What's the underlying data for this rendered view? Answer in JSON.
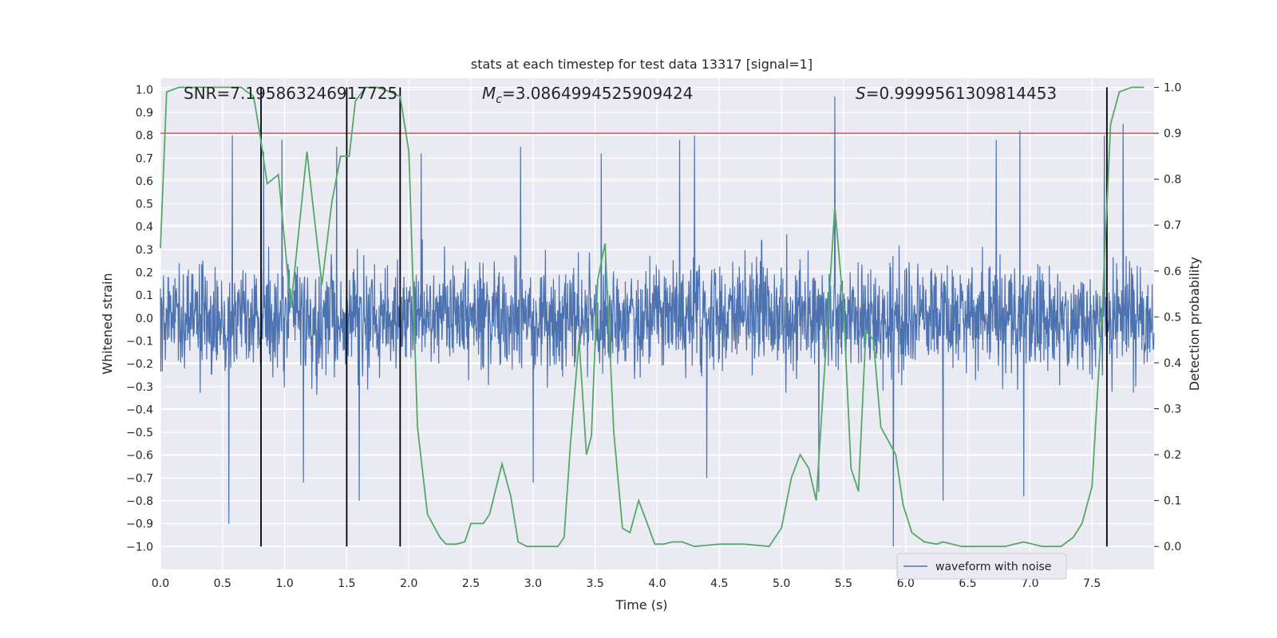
{
  "chart_data": {
    "type": "line",
    "title": "stats at each timestep for test data 13317 [signal=1]",
    "xlabel": "Time (s)",
    "ylabel": "Whitened strain",
    "y2label": "Detection probability",
    "xlim": [
      0.0,
      8.0
    ],
    "ylim": [
      -1.1,
      1.05
    ],
    "y2lim": [
      -0.05,
      1.02
    ],
    "x_ticks": [
      0.0,
      0.5,
      1.0,
      1.5,
      2.0,
      2.5,
      3.0,
      3.5,
      4.0,
      4.5,
      5.0,
      5.5,
      6.0,
      6.5,
      7.0,
      7.5
    ],
    "x_tick_labels": [
      "0.0",
      "0.5",
      "1.0",
      "1.5",
      "2.0",
      "2.5",
      "3.0",
      "3.5",
      "4.0",
      "4.5",
      "5.0",
      "5.5",
      "6.0",
      "6.5",
      "7.0",
      "7.5"
    ],
    "y_ticks": [
      1.0,
      0.9,
      0.8,
      0.7,
      0.6,
      0.5,
      0.4,
      0.3,
      0.2,
      0.1,
      0.0,
      -0.1,
      -0.2,
      -0.3,
      -0.4,
      -0.5,
      -0.6,
      -0.7,
      -0.8,
      -0.9,
      -1.0
    ],
    "y_tick_labels": [
      "1.0",
      "0.9",
      "0.8",
      "0.7",
      "0.6",
      "0.5",
      "0.4",
      "0.3",
      "0.2",
      "0.1",
      "0.0",
      "−0.1",
      "−0.2",
      "−0.3",
      "−0.4",
      "−0.5",
      "−0.6",
      "−0.7",
      "−0.8",
      "−0.9",
      "−1.0"
    ],
    "y2_ticks": [
      1.0,
      0.9,
      0.8,
      0.7,
      0.6,
      0.5,
      0.4,
      0.3,
      0.2,
      0.1,
      0.0
    ],
    "y2_tick_labels": [
      "1.0",
      "0.9",
      "0.8",
      "0.7",
      "0.6",
      "0.5",
      "0.4",
      "0.3",
      "0.2",
      "0.1",
      "0.0"
    ],
    "grid": true,
    "background": "#eaeaf2",
    "threshold": {
      "axis": "y2",
      "value": 0.9,
      "color": "#c44e52"
    },
    "vertical_markers": [
      0.81,
      1.5,
      1.93,
      7.62
    ],
    "annotations": [
      {
        "text": "SNR=7.195863246917725"
      },
      {
        "mc_prefix": "M",
        "mc_sub": "c",
        "mc_value": "=3.0864994525909424"
      },
      {
        "s_prefix": "S",
        "s_value": "=0.9999561309814453"
      }
    ],
    "series": [
      {
        "name": "waveform with noise",
        "color": "#4c72b0",
        "description_amplitude": "noise envelope roughly ±0.4 with spikes up to ~0.97 and down to ~-1.0",
        "spikes_high_x": [
          0.58,
          0.83,
          0.98,
          1.42,
          2.1,
          2.9,
          3.55,
          4.18,
          4.3,
          5.43,
          6.73,
          6.92,
          7.6,
          7.75
        ],
        "spikes_high_y": [
          0.8,
          0.73,
          0.78,
          0.75,
          0.72,
          0.75,
          0.72,
          0.78,
          0.8,
          0.97,
          0.78,
          0.82,
          0.8,
          0.85
        ],
        "spikes_low_x": [
          0.55,
          1.15,
          1.6,
          3.0,
          4.4,
          5.3,
          5.9,
          6.3,
          6.95
        ],
        "spikes_low_y": [
          -0.9,
          -0.72,
          -0.8,
          -0.72,
          -0.7,
          -0.76,
          -1.0,
          -0.8,
          -0.78
        ]
      },
      {
        "name": "detection probability",
        "color": "#55a868",
        "axis": "y2",
        "x": [
          0.0,
          0.05,
          0.15,
          0.25,
          0.35,
          0.45,
          0.55,
          0.65,
          0.7,
          0.75,
          0.8,
          0.86,
          0.95,
          1.05,
          1.18,
          1.3,
          1.38,
          1.45,
          1.52,
          1.57,
          1.65,
          1.75,
          1.85,
          1.93,
          2.0,
          2.07,
          2.15,
          2.25,
          2.3,
          2.38,
          2.45,
          2.5,
          2.6,
          2.65,
          2.75,
          2.82,
          2.88,
          2.95,
          3.05,
          3.2,
          3.25,
          3.3,
          3.37,
          3.43,
          3.47,
          3.52,
          3.58,
          3.65,
          3.72,
          3.78,
          3.85,
          3.92,
          3.98,
          4.05,
          4.12,
          4.2,
          4.3,
          4.5,
          4.7,
          4.9,
          5.0,
          5.08,
          5.15,
          5.22,
          5.28,
          5.35,
          5.43,
          5.5,
          5.56,
          5.62,
          5.68,
          5.74,
          5.8,
          5.86,
          5.92,
          5.98,
          6.05,
          6.15,
          6.25,
          6.3,
          6.45,
          6.6,
          6.8,
          6.95,
          7.1,
          7.25,
          7.35,
          7.42,
          7.5,
          7.58,
          7.65,
          7.72,
          7.82,
          7.92
        ],
        "y": [
          0.65,
          0.99,
          1.0,
          1.0,
          1.0,
          1.0,
          1.0,
          1.0,
          0.99,
          0.98,
          0.9,
          0.79,
          0.81,
          0.52,
          0.86,
          0.57,
          0.75,
          0.85,
          0.85,
          0.97,
          1.0,
          1.0,
          0.99,
          0.98,
          0.86,
          0.26,
          0.07,
          0.02,
          0.005,
          0.005,
          0.01,
          0.05,
          0.05,
          0.07,
          0.18,
          0.11,
          0.01,
          0.0,
          0.0,
          0.0,
          0.02,
          0.22,
          0.45,
          0.2,
          0.24,
          0.58,
          0.66,
          0.25,
          0.04,
          0.03,
          0.1,
          0.05,
          0.005,
          0.005,
          0.01,
          0.01,
          0.0,
          0.005,
          0.005,
          0.0,
          0.04,
          0.15,
          0.2,
          0.17,
          0.1,
          0.4,
          0.74,
          0.52,
          0.17,
          0.12,
          0.47,
          0.45,
          0.26,
          0.23,
          0.2,
          0.09,
          0.03,
          0.01,
          0.005,
          0.01,
          0.0,
          0.0,
          0.0,
          0.01,
          0.0,
          0.0,
          0.02,
          0.05,
          0.13,
          0.5,
          0.92,
          0.99,
          1.0,
          1.0
        ]
      }
    ],
    "legend": {
      "position": "bottom-right",
      "entries": [
        "waveform with noise"
      ]
    }
  }
}
